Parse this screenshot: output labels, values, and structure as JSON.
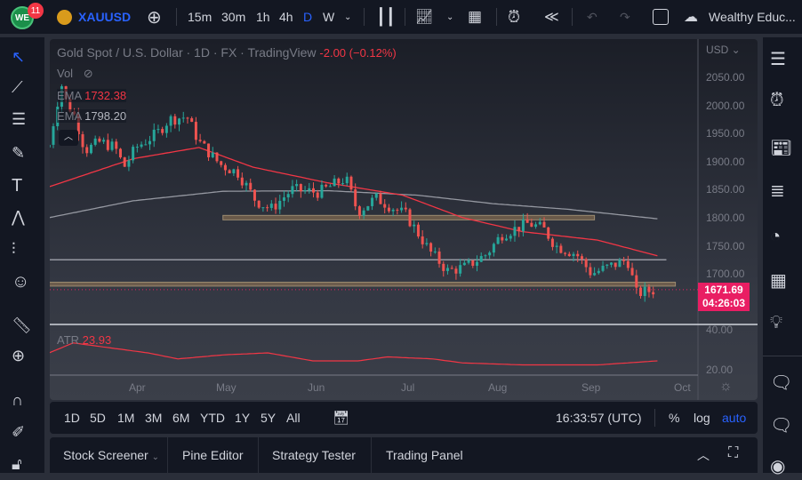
{
  "topbar": {
    "notification_count": "11",
    "symbol": "XAUUSD",
    "intervals": [
      "15m",
      "30m",
      "1h",
      "4h",
      "D",
      "W"
    ],
    "active_interval": "D",
    "account_name": "Wealthy Educ..."
  },
  "legend": {
    "title": "Gold Spot / U.S. Dollar · 1D · FX · TradingView",
    "change": "-2.00 (−0.12%)",
    "vol_label": "Vol",
    "ema1_label": "EMA",
    "ema1_value": "1732.38",
    "ema2_label": "EMA",
    "ema2_value": "1798.20",
    "atr_label": "ATR",
    "atr_value": "23.93"
  },
  "price_axis": {
    "currency": "USD",
    "ticks": [
      "2050.00",
      "2000.00",
      "1950.00",
      "1900.00",
      "1850.00",
      "1800.00",
      "1750.00",
      "1700.00"
    ],
    "last_price": "1671.69",
    "countdown": "04:26:03",
    "atr_ticks": [
      "40.00",
      "20.00"
    ]
  },
  "time_axis": {
    "labels": [
      "Apr",
      "May",
      "Jun",
      "Jul",
      "Aug",
      "Sep",
      "Oct"
    ]
  },
  "bottombar": {
    "ranges": [
      "1D",
      "5D",
      "1M",
      "3M",
      "6M",
      "YTD",
      "1Y",
      "5Y",
      "All"
    ],
    "clock": "16:33:57 (UTC)",
    "percent": "%",
    "log": "log",
    "auto": "auto"
  },
  "tabs": [
    "Stock Screener",
    "Pine Editor",
    "Strategy Tester",
    "Trading Panel"
  ],
  "colors": {
    "up": "#26a69a",
    "down": "#ef5350",
    "ema_fast": "#f23645",
    "ema_slow": "#9598a1",
    "last": "#e91e63",
    "accent": "#2962ff"
  },
  "chart_data": {
    "type": "candlestick",
    "x_unit": "days since Mar 1",
    "key_closes": [
      [
        2,
        1930
      ],
      [
        6,
        2040
      ],
      [
        8,
        2000
      ],
      [
        10,
        1990
      ],
      [
        14,
        1920
      ],
      [
        19,
        1935
      ],
      [
        24,
        1925
      ],
      [
        27,
        1890
      ],
      [
        31,
        1925
      ],
      [
        38,
        1950
      ],
      [
        42,
        1975
      ],
      [
        48,
        1980
      ],
      [
        52,
        1935
      ],
      [
        59,
        1895
      ],
      [
        65,
        1880
      ],
      [
        71,
        1830
      ],
      [
        76,
        1815
      ],
      [
        83,
        1850
      ],
      [
        92,
        1845
      ],
      [
        101,
        1870
      ],
      [
        105,
        1810
      ],
      [
        111,
        1835
      ],
      [
        121,
        1805
      ],
      [
        126,
        1765
      ],
      [
        129,
        1740
      ],
      [
        135,
        1705
      ],
      [
        141,
        1712
      ],
      [
        148,
        1735
      ],
      [
        153,
        1770
      ],
      [
        162,
        1790
      ],
      [
        167,
        1780
      ],
      [
        171,
        1750
      ],
      [
        178,
        1735
      ],
      [
        183,
        1700
      ],
      [
        190,
        1715
      ],
      [
        195,
        1725
      ],
      [
        198,
        1665
      ],
      [
        205,
        1672
      ]
    ],
    "ema_fast": [
      [
        2,
        1855
      ],
      [
        30,
        1905
      ],
      [
        52,
        1925
      ],
      [
        70,
        1890
      ],
      [
        95,
        1862
      ],
      [
        120,
        1840
      ],
      [
        140,
        1800
      ],
      [
        160,
        1775
      ],
      [
        185,
        1760
      ],
      [
        205,
        1732
      ]
    ],
    "ema_slow": [
      [
        2,
        1800
      ],
      [
        30,
        1830
      ],
      [
        60,
        1847
      ],
      [
        95,
        1848
      ],
      [
        125,
        1840
      ],
      [
        150,
        1825
      ],
      [
        175,
        1815
      ],
      [
        205,
        1798
      ]
    ],
    "atr": [
      [
        2,
        28
      ],
      [
        10,
        33
      ],
      [
        20,
        31
      ],
      [
        35,
        28
      ],
      [
        45,
        25
      ],
      [
        60,
        27
      ],
      [
        75,
        28
      ],
      [
        90,
        24
      ],
      [
        105,
        24
      ],
      [
        115,
        26
      ],
      [
        130,
        25
      ],
      [
        140,
        23
      ],
      [
        160,
        22
      ],
      [
        185,
        22
      ],
      [
        195,
        23
      ],
      [
        205,
        24
      ]
    ],
    "levels": [
      {
        "type": "zone",
        "from": 1796,
        "to": 1804,
        "start": 60,
        "end": 184
      },
      {
        "type": "line",
        "price": 1725,
        "start": 0,
        "end": 208
      },
      {
        "type": "zone",
        "from": 1678,
        "to": 1685,
        "start": 0,
        "end": 211
      }
    ],
    "ylim": [
      1640,
      2080
    ],
    "atr_ylim": [
      15,
      42
    ]
  }
}
